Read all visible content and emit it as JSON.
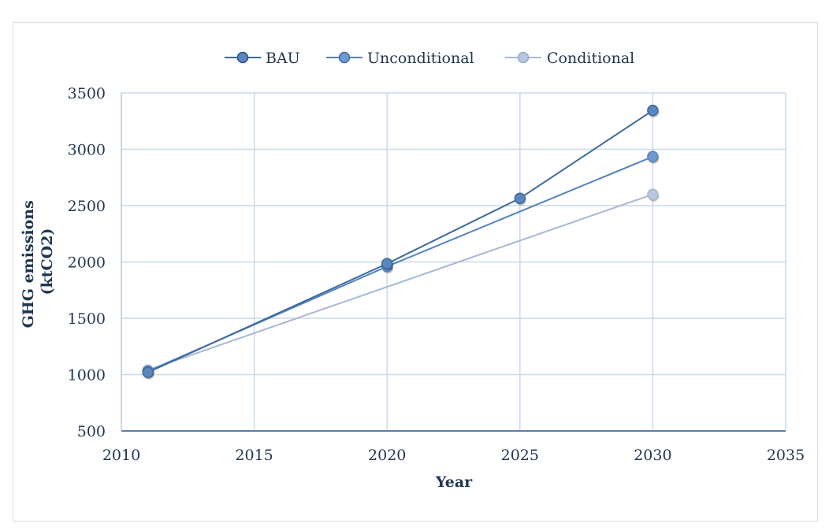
{
  "chart_data": {
    "type": "line",
    "title": "",
    "xlabel": "Year",
    "ylabel_lines": [
      "GHG emissions",
      "(ktCO2)"
    ],
    "xlim": [
      2010,
      2035
    ],
    "ylim": [
      500,
      3500
    ],
    "xticks": [
      2010,
      2015,
      2020,
      2025,
      2030,
      2035
    ],
    "yticks": [
      500,
      1000,
      1500,
      2000,
      2500,
      3000,
      3500
    ],
    "grid": true,
    "legend_position": "top",
    "series": [
      {
        "name": "BAU",
        "color": "#3d6a9c",
        "marker_color": "#5a86bf",
        "points": [
          {
            "x": 2011,
            "y": 1020
          },
          {
            "x": 2020,
            "y": 1985
          },
          {
            "x": 2025,
            "y": 2565
          },
          {
            "x": 2030,
            "y": 3345
          }
        ]
      },
      {
        "name": "Unconditional",
        "color": "#5482bd",
        "marker_color": "#6f99cf",
        "points": [
          {
            "x": 2011,
            "y": 1030
          },
          {
            "x": 2020,
            "y": 1960
          },
          {
            "x": 2030,
            "y": 2935
          }
        ]
      },
      {
        "name": "Conditional",
        "color": "#a8b8d4",
        "marker_color": "#b8c7e0",
        "points": [
          {
            "x": 2011,
            "y": 1040
          },
          {
            "x": 2030,
            "y": 2600
          }
        ]
      }
    ]
  }
}
